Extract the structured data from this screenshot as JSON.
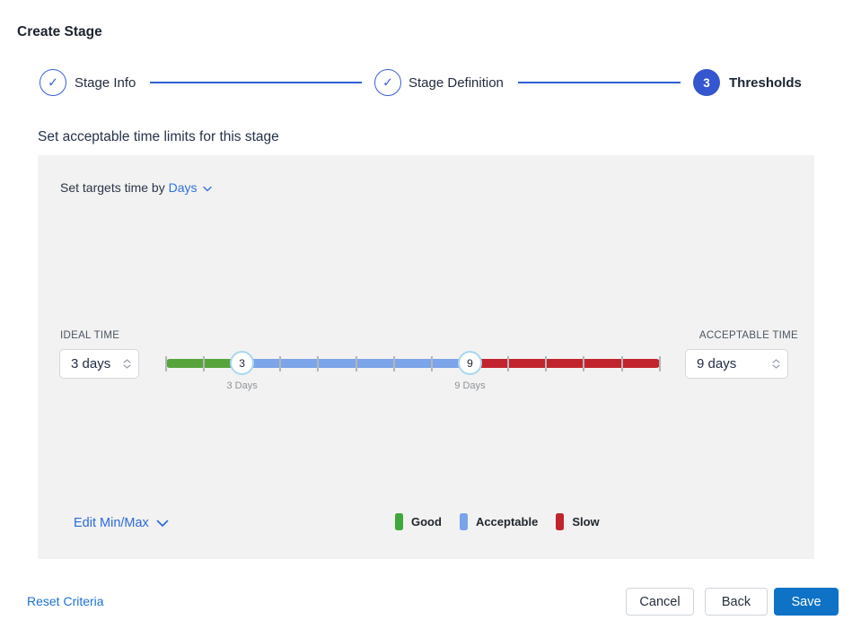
{
  "page": {
    "title": "Create Stage"
  },
  "stepper": {
    "steps": [
      {
        "label": "Stage Info",
        "state": "completed"
      },
      {
        "label": "Stage Definition",
        "state": "completed"
      },
      {
        "label": "Thresholds",
        "state": "current",
        "number": "3"
      }
    ]
  },
  "section": {
    "heading": "Set acceptable time limits for this stage"
  },
  "targets": {
    "prefix": "Set targets time by",
    "unit": "Days"
  },
  "slider": {
    "ideal": {
      "label": "IDEAL TIME",
      "value": "3 days",
      "handle_text": "3",
      "handle_label": "3 Days",
      "tick_index": 2
    },
    "acceptable": {
      "label": "ACCEPTABLE TIME",
      "value": "9 days",
      "handle_text": "9",
      "handle_label": "9 Days",
      "tick_index": 8
    },
    "tick_count": 14,
    "colors": {
      "good": "#57a43c",
      "acceptable": "#7ca4e8",
      "slow": "#c2242e"
    }
  },
  "edit_minmax": {
    "label": "Edit Min/Max"
  },
  "legend": [
    {
      "label": "Good",
      "color": "#3fa83c"
    },
    {
      "label": "Acceptable",
      "color": "#7aa3ea"
    },
    {
      "label": "Slow",
      "color": "#c2242e"
    }
  ],
  "actions": {
    "reset": "Reset Criteria",
    "cancel": "Cancel",
    "back": "Back",
    "save": "Save"
  }
}
